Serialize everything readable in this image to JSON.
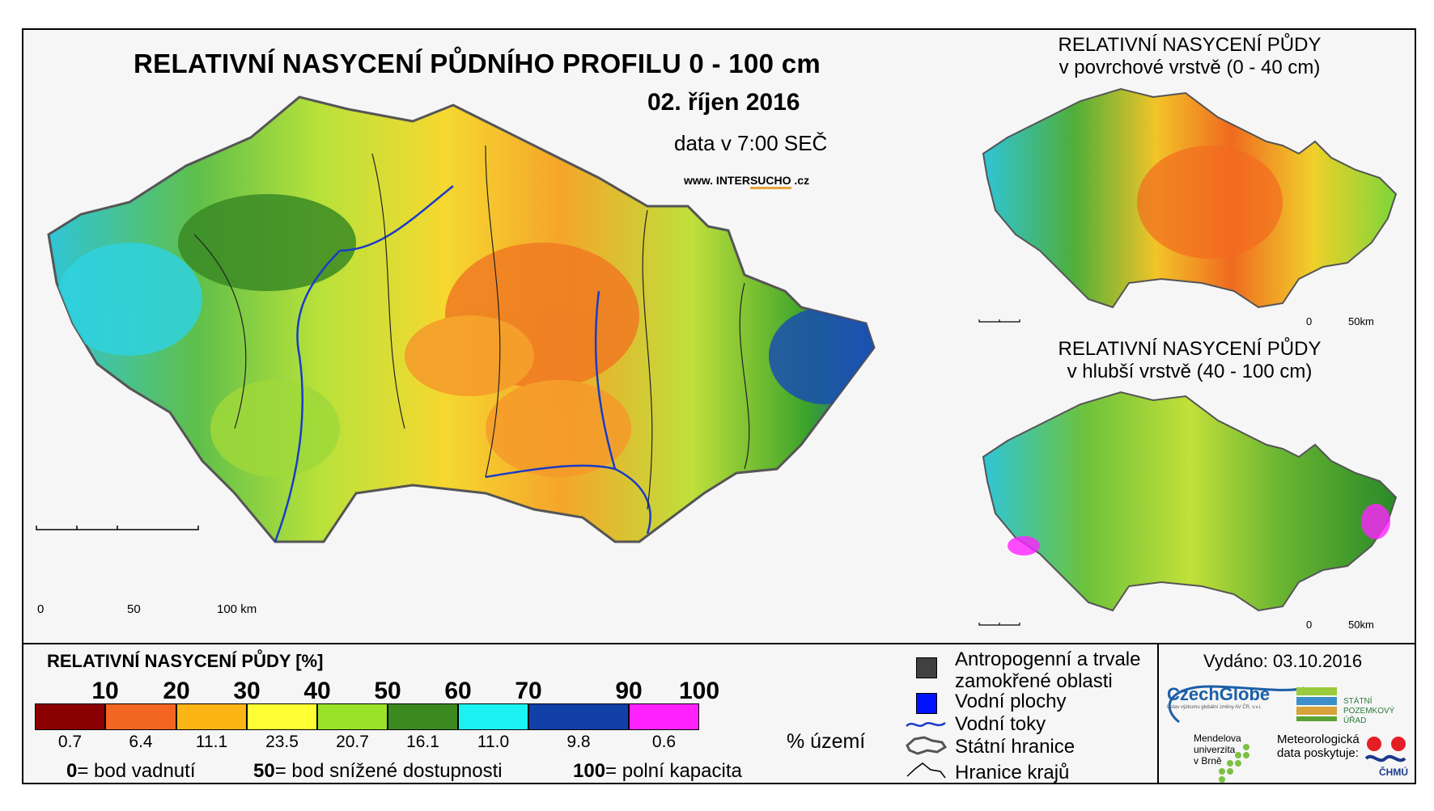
{
  "title": "RELATIVNÍ NASYCENÍ PŮDNÍHO PROFILU 0 - 100 cm",
  "date": "02. říjen 2016",
  "time": "data v 7:00 SEČ",
  "website": {
    "prefix": "www. INTER",
    "accent": "SUCHO",
    "suffix": " .cz"
  },
  "inset_surface": {
    "line1": "RELATIVNÍ NASYCENÍ PŮDY",
    "line2": "v povrchové vrstvě (0 - 40 cm)"
  },
  "inset_deep": {
    "line1": "RELATIVNÍ NASYCENÍ PŮDY",
    "line2": "v hlubší vrstvě (40 - 100 cm)"
  },
  "main_scale": {
    "s0": "0",
    "s1": "50",
    "s2": "100 km"
  },
  "inset_scale": {
    "s0": "0",
    "s1": "50km"
  },
  "legend": {
    "title": "RELATIVNÍ NASYCENÍ PŮDY [%]",
    "thresholds": [
      "10",
      "20",
      "30",
      "40",
      "50",
      "60",
      "70",
      "90",
      "100"
    ],
    "classes": [
      {
        "color": "#8b0000",
        "pct": "0.7"
      },
      {
        "color": "#f26522",
        "pct": "6.4"
      },
      {
        "color": "#fdb515",
        "pct": "11.1"
      },
      {
        "color": "#ffff33",
        "pct": "23.5"
      },
      {
        "color": "#9be22b",
        "pct": "20.7"
      },
      {
        "color": "#3c8a1f",
        "pct": "16.1"
      },
      {
        "color": "#1df2f2",
        "pct": "11.0"
      },
      {
        "color": "#1040a8",
        "pct": "9.8"
      },
      {
        "color": "#ff22ff",
        "pct": "0.6"
      }
    ],
    "pct_unit": "% území",
    "def0": {
      "num": "0",
      "text": "= bod vadnutí"
    },
    "def50": {
      "num": "50",
      "text": "= bod snížené dostupnosti"
    },
    "def100": {
      "num": "100",
      "text": "= polní kapacita"
    }
  },
  "map_legend": {
    "anthro": "Antropogenní a trvale zamokřené oblasti",
    "water": "Vodní plochy",
    "rivers": "Vodní toky",
    "state": "Státní hranice",
    "regions": "Hranice krajů"
  },
  "issued": "Vydáno: 03.10.2016",
  "logos": {
    "czechglobe": "CzechGlobe",
    "czechglobe_sub": "Ústav výzkumu globální změny AV ČR, v.v.i.",
    "spu": "STÁTNÍ POZEMKOVÝ ÚŘAD",
    "mendel": "Mendelova univerzita v Brně",
    "met": "Meteorologická data poskytuje:",
    "chmu": "ČHMÚ"
  }
}
